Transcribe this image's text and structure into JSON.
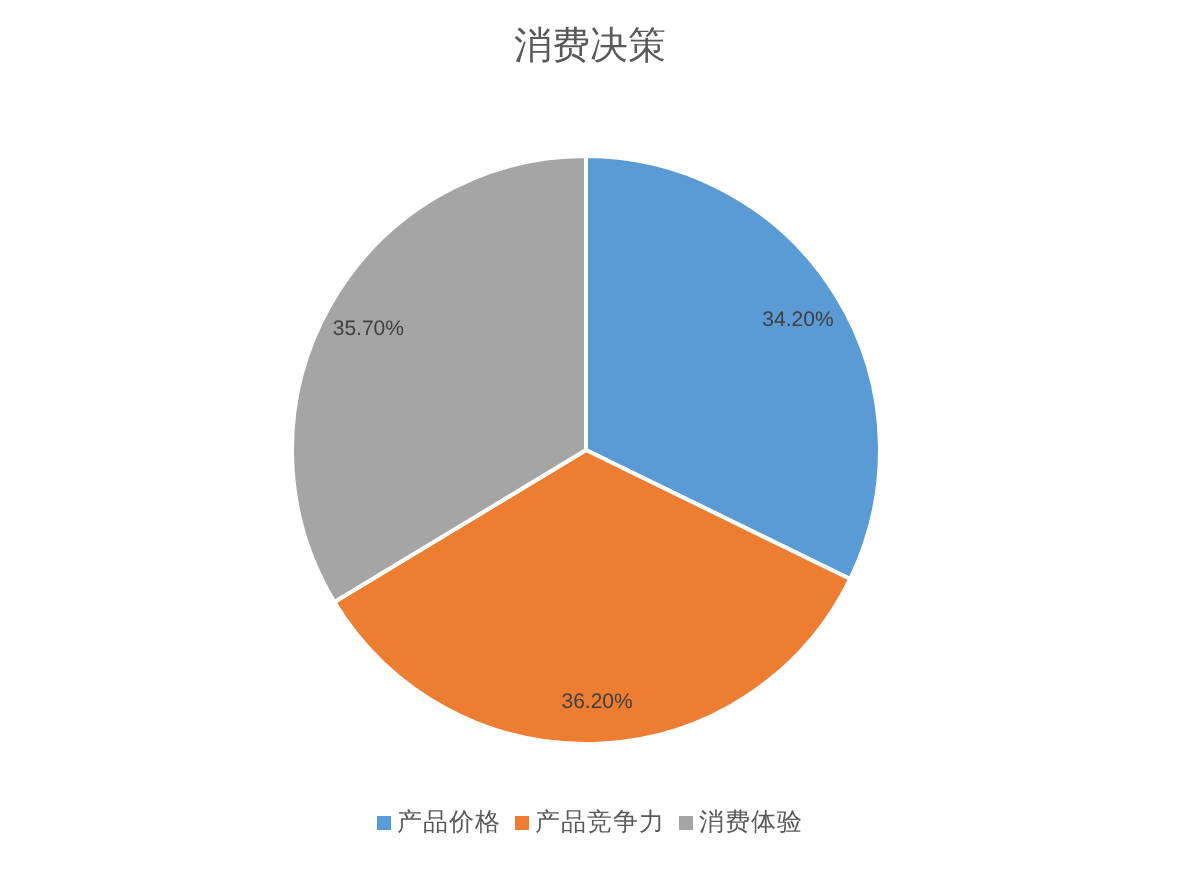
{
  "chart_data": {
    "type": "pie",
    "title": "消费决策",
    "categories": [
      "产品价格",
      "产品竞争力",
      "消费体验"
    ],
    "values": [
      34.2,
      36.2,
      35.7
    ],
    "colors": [
      "#5b9bd5",
      "#ed7d31",
      "#a5a5a5"
    ],
    "value_labels": [
      "34.20%",
      "36.20%",
      "35.70%"
    ],
    "legend": "bottom"
  }
}
